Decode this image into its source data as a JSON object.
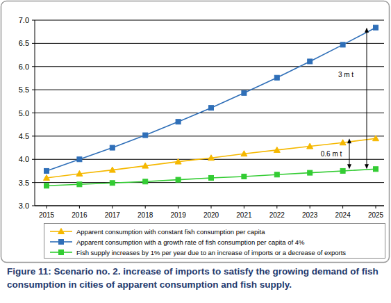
{
  "chart_data": {
    "type": "line",
    "title": "Figure 11: Scenario no. 2. increase of imports to satisfy the growing demand of fish consumption in cities of apparent consumption and fish supply.",
    "categories": [
      "2015",
      "2016",
      "2017",
      "2018",
      "2019",
      "2020",
      "2021",
      "2022",
      "2023",
      "2024",
      "2025"
    ],
    "series": [
      {
        "name": "Apparent consumption with constant fish consumption per capita",
        "color": "#f5b800",
        "marker": "triangle",
        "values": [
          3.6,
          3.69,
          3.77,
          3.86,
          3.95,
          4.03,
          4.12,
          4.2,
          4.28,
          4.36,
          4.45
        ]
      },
      {
        "name": "Apparent consumption with a growth rate of fish consumption per capita of 4%",
        "color": "#2f6fb8",
        "marker": "square",
        "values": [
          3.75,
          4.0,
          4.25,
          4.52,
          4.81,
          5.11,
          5.43,
          5.76,
          6.11,
          6.47,
          6.84
        ]
      },
      {
        "name": "Fish supply increases by 1% per year due to an increase of imports or a decrease of exports",
        "color": "#33cc33",
        "marker": "square",
        "values": [
          3.43,
          3.46,
          3.49,
          3.52,
          3.56,
          3.6,
          3.63,
          3.67,
          3.71,
          3.75,
          3.79
        ]
      }
    ],
    "annotations": [
      {
        "text": "3 m t"
      },
      {
        "text": "0.6 m t"
      }
    ],
    "ylim": [
      3,
      7
    ],
    "yticks": [
      {
        "value": 3,
        "label": "3.0"
      },
      {
        "value": 3.5,
        "label": "3.5"
      },
      {
        "value": 4,
        "label": "4.0"
      },
      {
        "value": 4.5,
        "label": "4.5"
      },
      {
        "value": 5,
        "label": "5.0"
      },
      {
        "value": 5.5,
        "label": "5.5"
      },
      {
        "value": 6,
        "label": "6.0"
      },
      {
        "value": 6.5,
        "label": "6.5"
      },
      {
        "value": 7,
        "label": "7.0"
      }
    ],
    "grid": true,
    "legend": "bottom"
  }
}
